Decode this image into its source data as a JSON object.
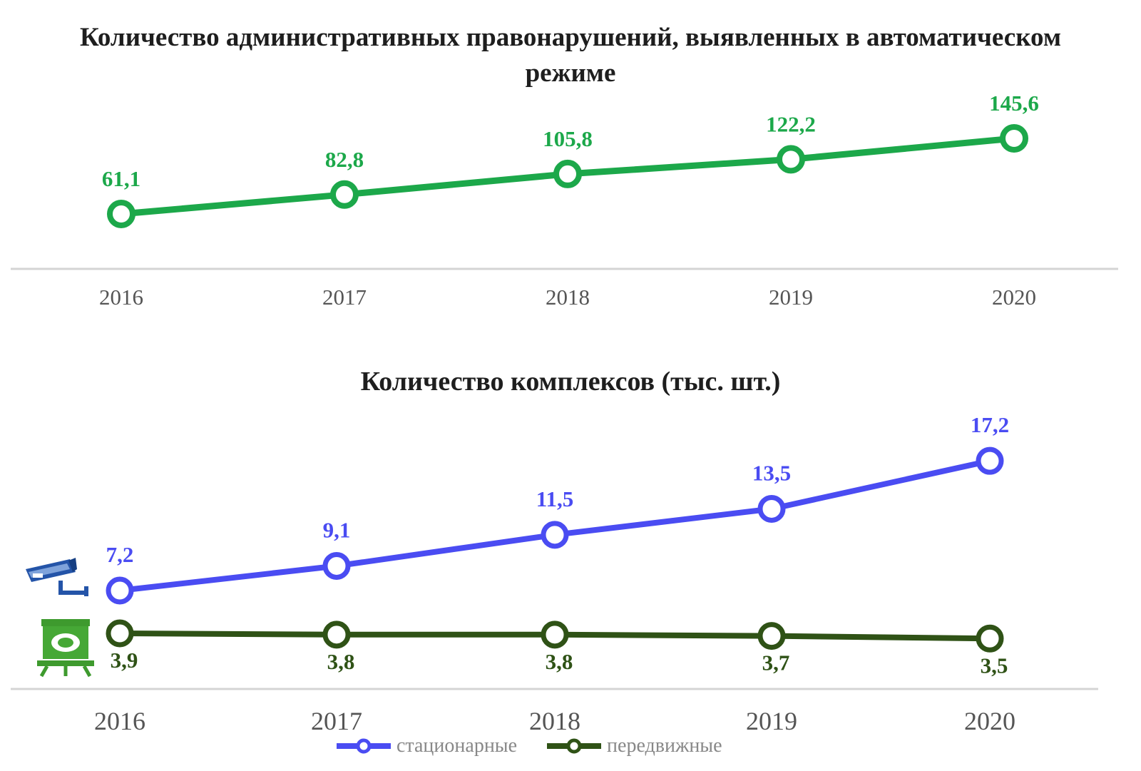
{
  "chart_data": [
    {
      "type": "line",
      "title": "Количество административных правонарушений, выявленных в автоматическом режиме",
      "categories": [
        "2016",
        "2017",
        "2018",
        "2019",
        "2020"
      ],
      "series": [
        {
          "values": [
            61.1,
            82.8,
            105.8,
            122.2,
            145.6
          ],
          "labels": [
            "61,1",
            "82,8",
            "105,8",
            "122,2",
            "145,6"
          ],
          "color": "#1ca84a"
        }
      ],
      "xlabel": "",
      "ylabel": "",
      "grid": false
    },
    {
      "type": "line",
      "title": "Количество комплексов (тыс. шт.)",
      "categories": [
        "2016",
        "2017",
        "2018",
        "2019",
        "2020"
      ],
      "series": [
        {
          "name": "стационарные",
          "values": [
            7.2,
            9.1,
            11.5,
            13.5,
            17.2
          ],
          "labels": [
            "7,2",
            "9,1",
            "11,5",
            "13,5",
            "17,2"
          ],
          "color": "#4a4cf2"
        },
        {
          "name": "передвижные",
          "values": [
            3.9,
            3.8,
            3.8,
            3.7,
            3.5
          ],
          "labels": [
            "3,9",
            "3,8",
            "3,8",
            "3,7",
            "3,5"
          ],
          "color": "#2f5216"
        }
      ],
      "legend": "bottom",
      "grid": false,
      "icons": [
        "speed-camera-icon",
        "mobile-radar-icon"
      ]
    }
  ]
}
